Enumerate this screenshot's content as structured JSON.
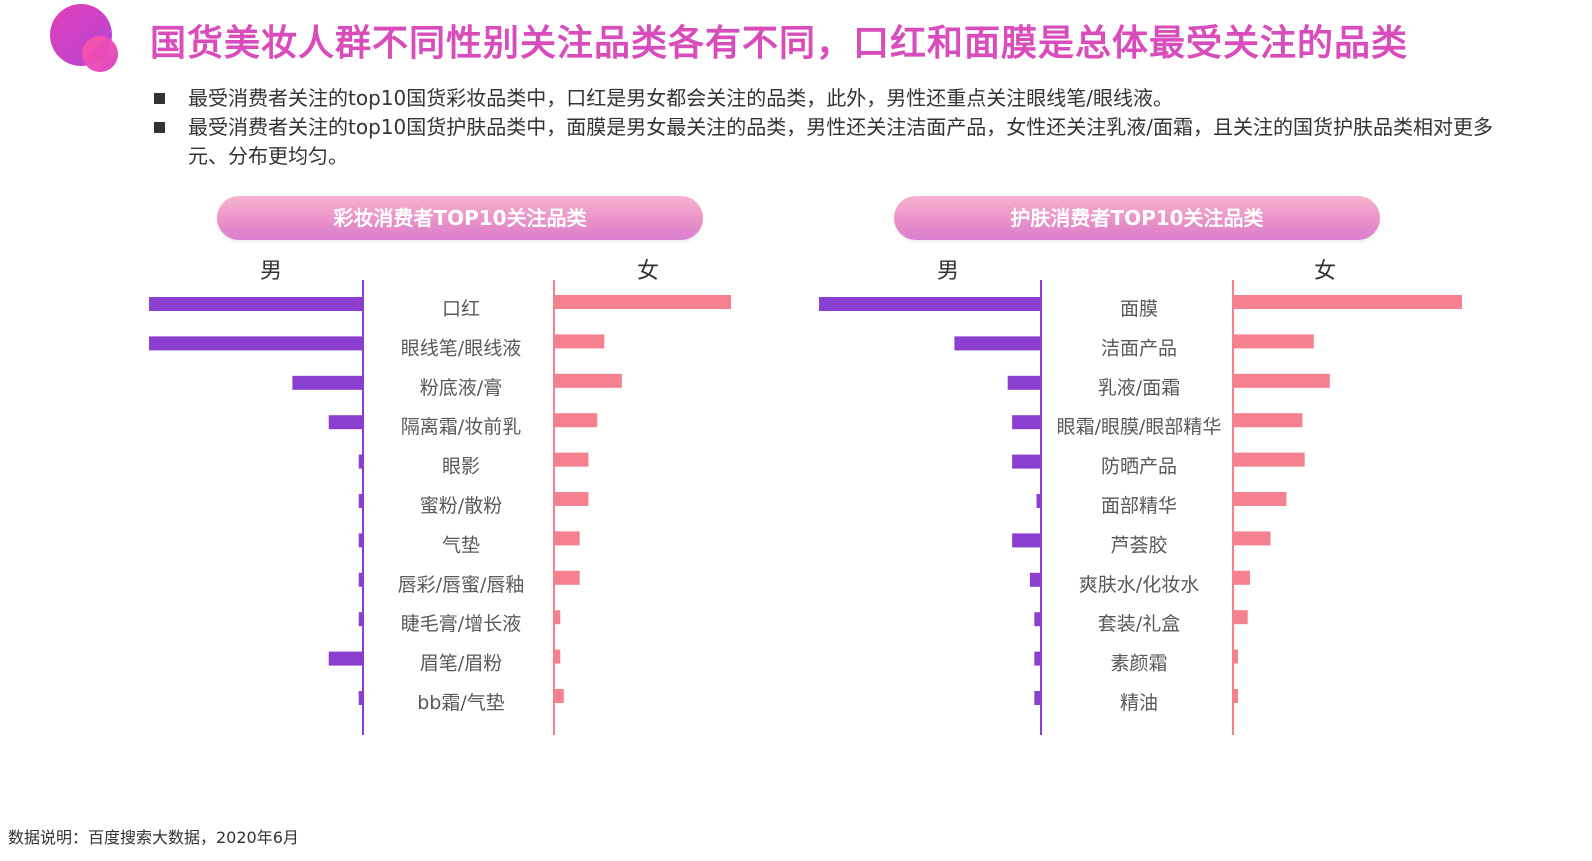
{
  "title": "国货美妆人群不同性别关注品类各有不同，口红和面膜是总体最受关注的品类",
  "bullets": [
    "最受消费者关注的top10国货彩妆品类中，口红是男女都会关注的品类，此外，男性还重点关注眼线笔/眼线液。",
    "最受消费者关注的top10国货护肤品类中，面膜是男女最关注的品类，男性还关注洁面产品，女性还关注乳液/面霜，且关注的国货护肤品类相对更多元、分布更均匀。"
  ],
  "footnote": "数据说明：百度搜索大数据，2020年6月",
  "colors": {
    "male": "#8a3fd1",
    "female": "#f5808f",
    "title": "#d94cbc",
    "axis": "#8a3fd1"
  },
  "chart_data": [
    {
      "type": "bar",
      "orientation": "horizontal-butterfly",
      "title": "彩妆消费者TOP10关注品类",
      "male_label": "男",
      "female_label": "女",
      "categories": [
        "口红",
        "眼线笔/眼线液",
        "粉底液/膏",
        "隔离霜/妆前乳",
        "眼影",
        "蜜粉/散粉",
        "气垫",
        "唇彩/唇蜜/唇釉",
        "睫毛膏/增长液",
        "眉笔/眉粉",
        "bb霜/气垫"
      ],
      "series": [
        {
          "name": "男",
          "values": [
            100,
            100,
            33,
            16,
            2,
            2,
            2,
            2,
            2,
            16,
            2
          ]
        },
        {
          "name": "女",
          "values": [
            100,
            28,
            38,
            24,
            19,
            19,
            14,
            14,
            3,
            3,
            5
          ]
        }
      ]
    },
    {
      "type": "bar",
      "orientation": "horizontal-butterfly",
      "title": "护肤消费者TOP10关注品类",
      "male_label": "男",
      "female_label": "女",
      "categories": [
        "面膜",
        "洁面产品",
        "乳液/面霜",
        "眼霜/眼膜/眼部精华",
        "防晒产品",
        "面部精华",
        "芦荟胶",
        "爽肤水/化妆水",
        "套装/礼盒",
        "素颜霜",
        "精油"
      ],
      "series": [
        {
          "name": "男",
          "values": [
            100,
            39,
            15,
            13,
            13,
            2,
            13,
            5,
            3,
            3,
            3
          ]
        },
        {
          "name": "女",
          "values": [
            100,
            35,
            42,
            30,
            31,
            23,
            16,
            7,
            6,
            1,
            1
          ]
        }
      ]
    }
  ]
}
